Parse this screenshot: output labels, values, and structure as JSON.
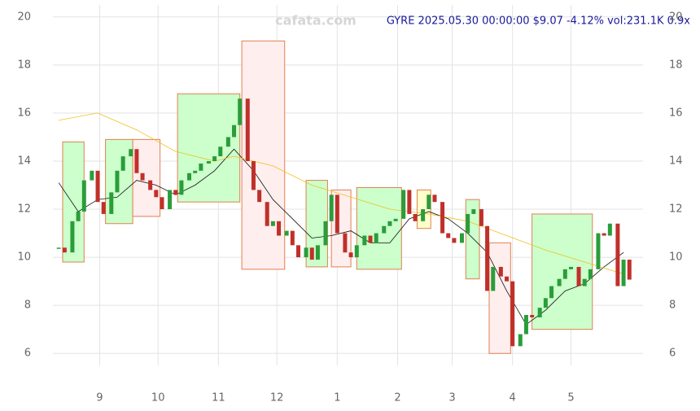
{
  "chart_data": {
    "type": "candlestick",
    "title": "GYRE 2025.05.30 00:00:00 $9.07 -4.12% vol:231.1K 0.9x",
    "watermark": "cafata.com",
    "x": [
      10,
      13,
      17,
      20,
      23,
      27,
      30,
      33,
      37,
      40,
      43,
      47,
      50,
      53,
      57,
      60,
      63,
      67,
      70,
      73,
      77,
      80,
      83,
      87,
      90,
      93,
      97,
      100,
      103,
      107,
      110,
      113,
      117,
      120,
      123,
      127,
      130,
      133,
      137,
      140,
      143,
      147,
      150,
      153,
      157,
      160,
      163,
      167,
      170,
      173,
      177,
      180,
      183,
      187,
      190,
      193,
      197,
      200,
      203,
      207,
      210,
      213,
      217,
      220,
      223,
      227,
      230,
      233,
      237,
      240,
      243,
      247,
      250,
      253,
      257,
      260,
      263,
      267,
      270,
      273,
      277,
      280,
      283,
      287,
      290,
      293,
      297,
      300,
      303
    ],
    "close": [
      10.4,
      10.2,
      11.5,
      11.9,
      13.2,
      13.6,
      12.3,
      11.8,
      12.7,
      13.6,
      14.2,
      14.5,
      13.5,
      13.2,
      12.8,
      12.5,
      12.0,
      12.8,
      12.6,
      13.2,
      13.5,
      13.6,
      13.9,
      14.0,
      14.2,
      14.6,
      15.0,
      15.5,
      16.6,
      14.0,
      12.8,
      12.3,
      11.3,
      11.5,
      10.9,
      11.1,
      10.5,
      10.0,
      10.4,
      9.9,
      10.5,
      11.5,
      12.6,
      11.0,
      10.2,
      10.0,
      10.5,
      10.9,
      10.6,
      11.0,
      11.3,
      11.5,
      11.6,
      12.8,
      11.8,
      11.5,
      12.0,
      12.6,
      12.3,
      11.0,
      10.8,
      10.6,
      11.0,
      11.8,
      12.0,
      11.3,
      8.6,
      9.6,
      9.2,
      9.0,
      6.3,
      6.8,
      7.6,
      7.5,
      7.9,
      8.3,
      8.8,
      9.1,
      9.5,
      9.6,
      8.8,
      9.1,
      9.5,
      11.0,
      10.9,
      11.4,
      8.8,
      9.9,
      9.07
    ],
    "up_color": "#2a9d3a",
    "down_color": "#c0302a",
    "zones": [
      {
        "x": [
          12,
          23
        ],
        "y": [
          9.8,
          14.8
        ],
        "color": "#ccffcc"
      },
      {
        "x": [
          34,
          48
        ],
        "y": [
          11.4,
          14.9
        ],
        "color": "#ccffcc"
      },
      {
        "x": [
          48,
          62
        ],
        "y": [
          11.7,
          14.9
        ],
        "color": "#ffeeee"
      },
      {
        "x": [
          71,
          103
        ],
        "y": [
          12.3,
          16.8
        ],
        "color": "#ccffcc"
      },
      {
        "x": [
          104,
          126
        ],
        "y": [
          9.5,
          19.0
        ],
        "color": "#ffeeee"
      },
      {
        "x": [
          137,
          148
        ],
        "y": [
          9.6,
          13.2
        ],
        "color": "#ccffcc"
      },
      {
        "x": [
          150,
          160
        ],
        "y": [
          9.6,
          12.8
        ],
        "color": "#ffeeee"
      },
      {
        "x": [
          163,
          186
        ],
        "y": [
          9.5,
          12.9
        ],
        "color": "#ccffcc"
      },
      {
        "x": [
          194,
          201
        ],
        "y": [
          11.2,
          12.8
        ],
        "color": "#ffffcc"
      },
      {
        "x": [
          219,
          226
        ],
        "y": [
          9.1,
          12.4
        ],
        "color": "#ccffcc"
      },
      {
        "x": [
          231,
          242
        ],
        "y": [
          6.0,
          10.6
        ],
        "color": "#ffeeee"
      },
      {
        "x": [
          253,
          284
        ],
        "y": [
          7.0,
          11.8
        ],
        "color": "#ccffcc"
      }
    ],
    "zone_border": "#e08050",
    "series": [
      {
        "color": "#111111",
        "x": [
          10,
          20,
          30,
          40,
          50,
          60,
          70,
          80,
          90,
          100,
          110,
          120,
          130,
          140,
          150,
          160,
          170,
          180,
          190,
          200,
          210,
          220,
          230,
          240,
          250,
          260,
          270,
          280,
          290,
          300
        ],
        "values": [
          13.1,
          11.9,
          12.4,
          12.5,
          13.2,
          13.0,
          12.6,
          13.0,
          13.6,
          14.5,
          13.6,
          12.4,
          11.6,
          10.8,
          10.9,
          11.1,
          10.6,
          10.6,
          11.6,
          11.9,
          11.6,
          11.0,
          10.2,
          8.6,
          7.2,
          7.8,
          8.6,
          8.9,
          9.6,
          10.2
        ]
      },
      {
        "color": "#f0c020",
        "x": [
          10,
          30,
          50,
          70,
          90,
          100,
          120,
          140,
          160,
          180,
          200,
          220,
          240,
          260,
          280,
          300
        ],
        "values": [
          15.7,
          16.0,
          15.3,
          14.4,
          14.0,
          14.2,
          13.8,
          13.0,
          12.5,
          12.0,
          11.8,
          11.5,
          10.9,
          10.3,
          9.8,
          9.3
        ]
      }
    ],
    "xlim": [
      7,
      310
    ],
    "ylim": [
      5.5,
      20.5
    ],
    "xticks": [
      {
        "value": 31,
        "label": "9"
      },
      {
        "value": 61,
        "label": "10"
      },
      {
        "value": 92,
        "label": "11"
      },
      {
        "value": 122,
        "label": "12"
      },
      {
        "value": 153,
        "label": "1"
      },
      {
        "value": 184,
        "label": "2"
      },
      {
        "value": 212,
        "label": "3"
      },
      {
        "value": 243,
        "label": "4"
      },
      {
        "value": 273,
        "label": "5"
      }
    ],
    "yticks": [
      6,
      8,
      10,
      12,
      14,
      16,
      18,
      20
    ],
    "grid": true
  }
}
